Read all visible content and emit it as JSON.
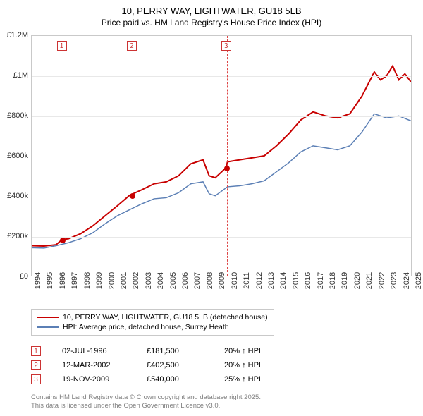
{
  "title_line1": "10, PERRY WAY, LIGHTWATER, GU18 5LB",
  "title_line2": "Price paid vs. HM Land Registry's House Price Index (HPI)",
  "chart": {
    "type": "line",
    "x_years": [
      1994,
      1995,
      1996,
      1997,
      1998,
      1999,
      2000,
      2001,
      2002,
      2003,
      2004,
      2005,
      2006,
      2007,
      2008,
      2009,
      2010,
      2011,
      2012,
      2013,
      2014,
      2015,
      2016,
      2017,
      2018,
      2019,
      2020,
      2021,
      2022,
      2023,
      2024,
      2025
    ],
    "ylim": [
      0,
      1200000
    ],
    "yticks": [
      0,
      200000,
      400000,
      600000,
      800000,
      1000000,
      1200000
    ],
    "ytick_labels": [
      "£0",
      "£200k",
      "£400k",
      "£600k",
      "£800k",
      "£1M",
      "£1.2M"
    ],
    "grid_color": "#e8e8e8",
    "border_color": "#c9c9c9",
    "background_color": "#ffffff",
    "series": [
      {
        "name": "10, PERRY WAY, LIGHTWATER, GU18 5LB (detached house)",
        "color": "#c80000",
        "width": 2,
        "points": [
          [
            1994,
            150000
          ],
          [
            1995,
            148000
          ],
          [
            1996,
            155000
          ],
          [
            1996.5,
            181500
          ],
          [
            1997,
            185000
          ],
          [
            1998,
            210000
          ],
          [
            1999,
            250000
          ],
          [
            2000,
            300000
          ],
          [
            2001,
            350000
          ],
          [
            2002,
            402500
          ],
          [
            2003,
            430000
          ],
          [
            2004,
            460000
          ],
          [
            2005,
            470000
          ],
          [
            2006,
            500000
          ],
          [
            2007,
            560000
          ],
          [
            2008,
            580000
          ],
          [
            2008.5,
            500000
          ],
          [
            2009,
            490000
          ],
          [
            2009.88,
            540000
          ],
          [
            2010,
            570000
          ],
          [
            2011,
            580000
          ],
          [
            2012,
            590000
          ],
          [
            2013,
            600000
          ],
          [
            2014,
            650000
          ],
          [
            2015,
            710000
          ],
          [
            2016,
            780000
          ],
          [
            2017,
            820000
          ],
          [
            2018,
            800000
          ],
          [
            2019,
            790000
          ],
          [
            2020,
            810000
          ],
          [
            2021,
            900000
          ],
          [
            2022,
            1020000
          ],
          [
            2022.5,
            980000
          ],
          [
            2023,
            1000000
          ],
          [
            2023.5,
            1050000
          ],
          [
            2024,
            980000
          ],
          [
            2024.5,
            1010000
          ],
          [
            2025,
            970000
          ]
        ]
      },
      {
        "name": "HPI: Average price, detached house, Surrey Heath",
        "color": "#5b7fb5",
        "width": 1.5,
        "points": [
          [
            1994,
            140000
          ],
          [
            1995,
            138000
          ],
          [
            1996,
            150000
          ],
          [
            1997,
            165000
          ],
          [
            1998,
            185000
          ],
          [
            1999,
            215000
          ],
          [
            2000,
            260000
          ],
          [
            2001,
            300000
          ],
          [
            2002,
            330000
          ],
          [
            2003,
            360000
          ],
          [
            2004,
            385000
          ],
          [
            2005,
            390000
          ],
          [
            2006,
            415000
          ],
          [
            2007,
            460000
          ],
          [
            2008,
            470000
          ],
          [
            2008.5,
            410000
          ],
          [
            2009,
            400000
          ],
          [
            2010,
            445000
          ],
          [
            2011,
            450000
          ],
          [
            2012,
            460000
          ],
          [
            2013,
            475000
          ],
          [
            2014,
            520000
          ],
          [
            2015,
            565000
          ],
          [
            2016,
            620000
          ],
          [
            2017,
            650000
          ],
          [
            2018,
            640000
          ],
          [
            2019,
            630000
          ],
          [
            2020,
            650000
          ],
          [
            2021,
            720000
          ],
          [
            2022,
            810000
          ],
          [
            2023,
            790000
          ],
          [
            2024,
            800000
          ],
          [
            2025,
            775000
          ]
        ]
      }
    ],
    "sale_markers": [
      {
        "n": "1",
        "year": 1996.5,
        "value": 181500
      },
      {
        "n": "2",
        "year": 2002.2,
        "value": 402500
      },
      {
        "n": "3",
        "year": 2009.88,
        "value": 540000
      }
    ]
  },
  "legend": {
    "items": [
      {
        "label": "10, PERRY WAY, LIGHTWATER, GU18 5LB (detached house)",
        "color": "#c80000"
      },
      {
        "label": "HPI: Average price, detached house, Surrey Heath",
        "color": "#5b7fb5"
      }
    ]
  },
  "sales": [
    {
      "n": "1",
      "date": "02-JUL-1996",
      "price": "£181,500",
      "diff": "20% ↑ HPI"
    },
    {
      "n": "2",
      "date": "12-MAR-2002",
      "price": "£402,500",
      "diff": "20% ↑ HPI"
    },
    {
      "n": "3",
      "date": "19-NOV-2009",
      "price": "£540,000",
      "diff": "25% ↑ HPI"
    }
  ],
  "footer_line1": "Contains HM Land Registry data © Crown copyright and database right 2025.",
  "footer_line2": "This data is licensed under the Open Government Licence v3.0."
}
